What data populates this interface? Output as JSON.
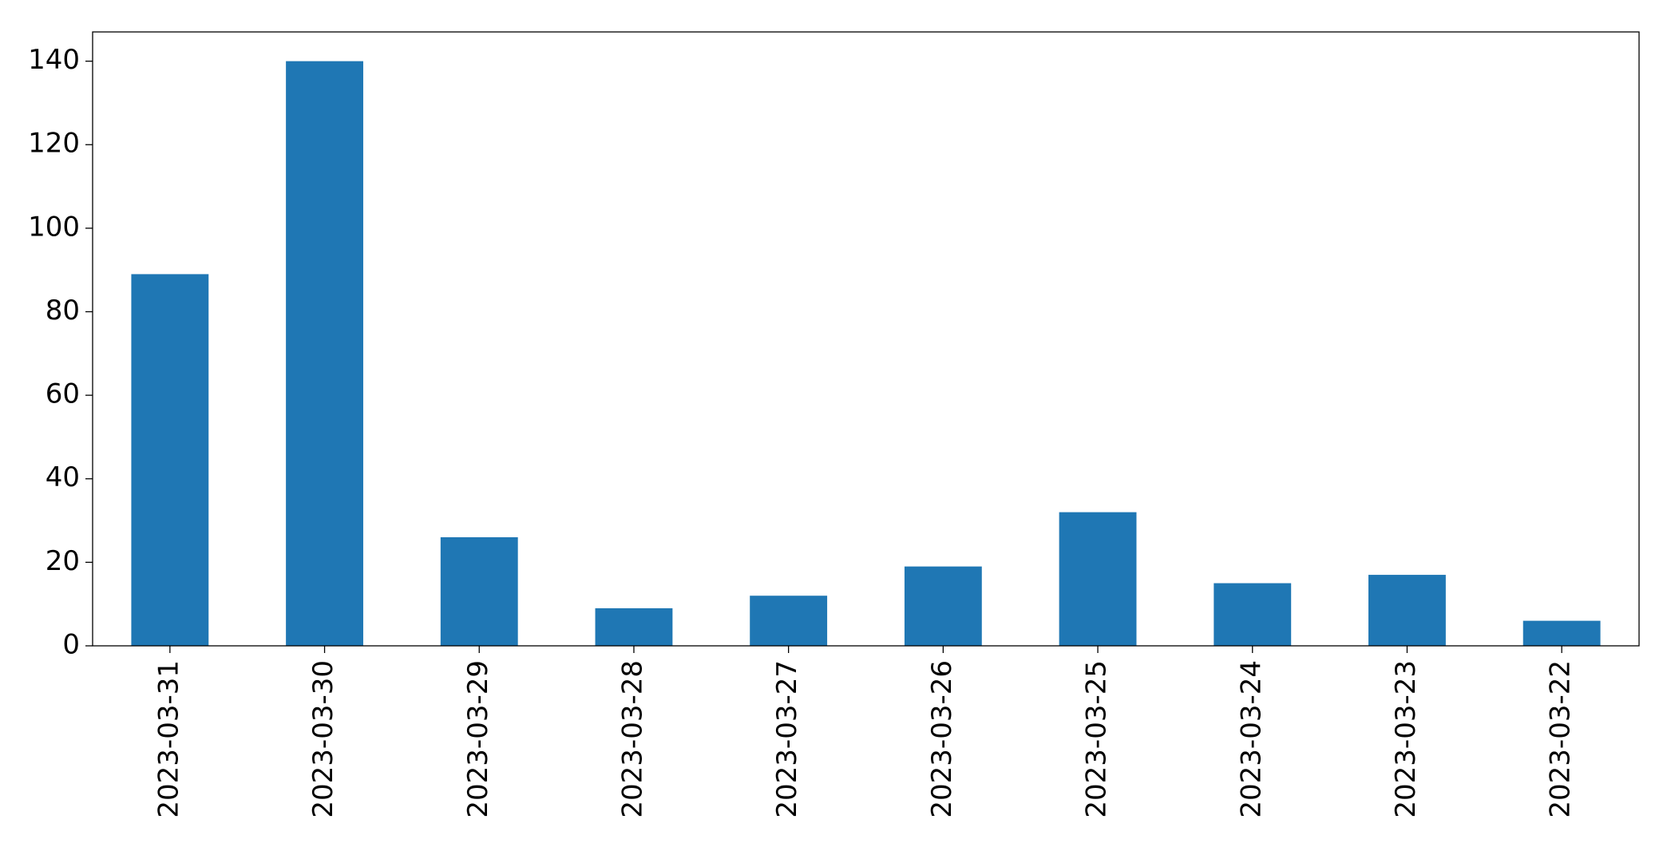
{
  "chart_data": {
    "type": "bar",
    "categories": [
      "2023-03-31",
      "2023-03-30",
      "2023-03-29",
      "2023-03-28",
      "2023-03-27",
      "2023-03-26",
      "2023-03-25",
      "2023-03-24",
      "2023-03-23",
      "2023-03-22"
    ],
    "values": [
      89,
      140,
      26,
      9,
      12,
      19,
      32,
      15,
      17,
      6
    ],
    "color": "#1f77b4",
    "ylim": [
      0,
      147
    ],
    "yticks": [
      0,
      20,
      40,
      60,
      80,
      100,
      120,
      140
    ],
    "grid": false
  }
}
